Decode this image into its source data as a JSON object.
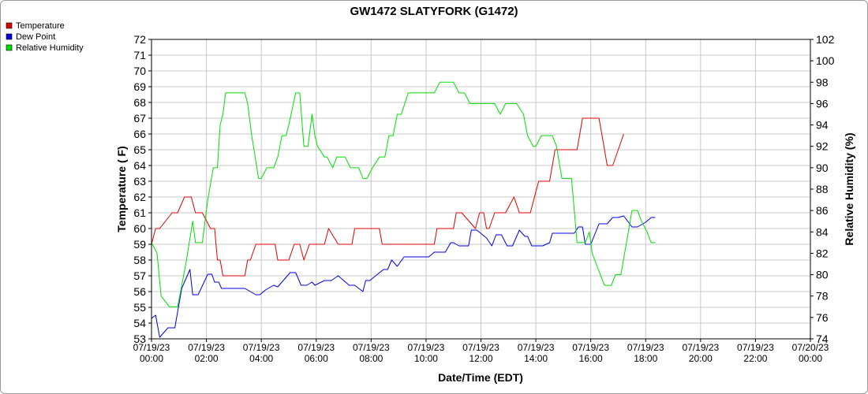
{
  "chart_data": {
    "type": "line",
    "title": "GW1472 SLATYFORK (G1472)",
    "xlabel": "Date/Time (EDT)",
    "ylabel": "Temperature ( F)",
    "ylabel_right": "Relative Humidity (%)",
    "xlim_hours": [
      0,
      24
    ],
    "ylim": [
      53,
      72
    ],
    "ylim_right": [
      74,
      102
    ],
    "grid": true,
    "legend_position": "top-left",
    "x_ticks": [
      {
        "h": 0,
        "date": "07/19/23",
        "time": "00:00"
      },
      {
        "h": 2,
        "date": "07/19/23",
        "time": "02:00"
      },
      {
        "h": 4,
        "date": "07/19/23",
        "time": "04:00"
      },
      {
        "h": 6,
        "date": "07/19/23",
        "time": "06:00"
      },
      {
        "h": 8,
        "date": "07/19/23",
        "time": "08:00"
      },
      {
        "h": 10,
        "date": "07/19/23",
        "time": "10:00"
      },
      {
        "h": 12,
        "date": "07/19/23",
        "time": "12:00"
      },
      {
        "h": 14,
        "date": "07/19/23",
        "time": "14:00"
      },
      {
        "h": 16,
        "date": "07/19/23",
        "time": "16:00"
      },
      {
        "h": 18,
        "date": "07/19/23",
        "time": "18:00"
      },
      {
        "h": 20,
        "date": "07/19/23",
        "time": "20:00"
      },
      {
        "h": 22,
        "date": "07/19/23",
        "time": "22:00"
      },
      {
        "h": 24,
        "date": "07/20/23",
        "time": "00:00"
      }
    ],
    "y_ticks": [
      53,
      54,
      55,
      56,
      57,
      58,
      59,
      60,
      61,
      62,
      63,
      64,
      65,
      66,
      67,
      68,
      69,
      70,
      71,
      72
    ],
    "y_ticks_right": [
      74,
      76,
      78,
      80,
      82,
      84,
      86,
      88,
      90,
      92,
      94,
      96,
      98,
      100,
      102
    ],
    "series": [
      {
        "name": "Temperature",
        "axis": "left",
        "color": "#e00000",
        "points": [
          [
            0.0,
            59
          ],
          [
            0.15,
            60
          ],
          [
            0.3,
            60
          ],
          [
            0.75,
            61
          ],
          [
            0.95,
            61
          ],
          [
            1.2,
            62
          ],
          [
            1.45,
            62
          ],
          [
            1.6,
            61
          ],
          [
            1.85,
            61
          ],
          [
            2.15,
            60
          ],
          [
            2.3,
            60
          ],
          [
            2.4,
            58
          ],
          [
            2.5,
            58
          ],
          [
            2.6,
            57
          ],
          [
            3.4,
            57
          ],
          [
            3.5,
            58
          ],
          [
            3.6,
            58
          ],
          [
            3.8,
            59
          ],
          [
            4.5,
            59
          ],
          [
            4.6,
            58
          ],
          [
            5.0,
            58
          ],
          [
            5.2,
            59
          ],
          [
            5.4,
            59
          ],
          [
            5.55,
            58
          ],
          [
            5.75,
            59
          ],
          [
            6.3,
            59
          ],
          [
            6.45,
            60
          ],
          [
            6.8,
            59
          ],
          [
            7.3,
            59
          ],
          [
            7.4,
            60
          ],
          [
            8.3,
            60
          ],
          [
            8.4,
            59
          ],
          [
            10.3,
            59
          ],
          [
            10.4,
            60
          ],
          [
            11.0,
            60
          ],
          [
            11.1,
            61
          ],
          [
            11.3,
            61
          ],
          [
            11.8,
            60
          ],
          [
            11.95,
            61
          ],
          [
            12.1,
            61
          ],
          [
            12.2,
            60
          ],
          [
            12.3,
            60
          ],
          [
            12.5,
            61
          ],
          [
            12.9,
            61
          ],
          [
            13.2,
            62
          ],
          [
            13.4,
            61
          ],
          [
            13.8,
            61
          ],
          [
            14.1,
            63
          ],
          [
            14.5,
            63
          ],
          [
            14.6,
            64
          ],
          [
            14.7,
            65
          ],
          [
            15.5,
            65
          ],
          [
            15.6,
            66
          ],
          [
            15.7,
            67
          ],
          [
            16.3,
            67
          ],
          [
            16.5,
            65
          ],
          [
            16.6,
            64
          ],
          [
            16.8,
            64
          ],
          [
            17.0,
            65
          ],
          [
            17.2,
            66
          ]
        ]
      },
      {
        "name": "Dew Point",
        "axis": "left",
        "color": "#0000e0",
        "points": [
          [
            0.0,
            54.3
          ],
          [
            0.15,
            54.5
          ],
          [
            0.3,
            53.1
          ],
          [
            0.6,
            53.7
          ],
          [
            0.85,
            53.7
          ],
          [
            1.1,
            56.2
          ],
          [
            1.4,
            57.4
          ],
          [
            1.5,
            55.8
          ],
          [
            1.7,
            55.8
          ],
          [
            2.05,
            57.1
          ],
          [
            2.2,
            57.1
          ],
          [
            2.3,
            56.6
          ],
          [
            2.45,
            56.6
          ],
          [
            2.55,
            56.2
          ],
          [
            3.4,
            56.2
          ],
          [
            3.6,
            56.0
          ],
          [
            3.8,
            55.8
          ],
          [
            3.95,
            55.8
          ],
          [
            4.15,
            56.1
          ],
          [
            4.45,
            56.4
          ],
          [
            4.6,
            56.3
          ],
          [
            4.85,
            56.8
          ],
          [
            5.05,
            57.2
          ],
          [
            5.25,
            57.2
          ],
          [
            5.45,
            56.4
          ],
          [
            5.65,
            56.4
          ],
          [
            5.85,
            56.6
          ],
          [
            5.95,
            56.4
          ],
          [
            6.3,
            56.7
          ],
          [
            6.55,
            56.7
          ],
          [
            6.8,
            57.0
          ],
          [
            7.2,
            56.4
          ],
          [
            7.4,
            56.4
          ],
          [
            7.7,
            56.0
          ],
          [
            7.8,
            56.7
          ],
          [
            7.95,
            56.7
          ],
          [
            8.45,
            57.4
          ],
          [
            8.6,
            57.4
          ],
          [
            8.75,
            58.0
          ],
          [
            8.95,
            57.6
          ],
          [
            9.2,
            58.2
          ],
          [
            10.1,
            58.2
          ],
          [
            10.3,
            58.5
          ],
          [
            10.7,
            58.5
          ],
          [
            10.9,
            59.1
          ],
          [
            11.0,
            59.1
          ],
          [
            11.2,
            58.9
          ],
          [
            11.55,
            58.9
          ],
          [
            11.65,
            59.9
          ],
          [
            11.85,
            59.9
          ],
          [
            12.2,
            59.4
          ],
          [
            12.4,
            58.9
          ],
          [
            12.55,
            59.6
          ],
          [
            12.75,
            59.6
          ],
          [
            12.95,
            58.9
          ],
          [
            13.15,
            58.9
          ],
          [
            13.4,
            59.9
          ],
          [
            13.6,
            59.5
          ],
          [
            13.7,
            59.5
          ],
          [
            13.85,
            58.9
          ],
          [
            14.0,
            58.9
          ],
          [
            14.25,
            58.9
          ],
          [
            14.5,
            59.1
          ],
          [
            14.6,
            59.7
          ],
          [
            15.1,
            59.7
          ],
          [
            15.4,
            59.7
          ],
          [
            15.55,
            60.1
          ],
          [
            15.7,
            60.1
          ],
          [
            15.8,
            59.0
          ],
          [
            16.0,
            59.0
          ],
          [
            16.3,
            60.3
          ],
          [
            16.6,
            60.3
          ],
          [
            16.8,
            60.7
          ],
          [
            17.0,
            60.7
          ],
          [
            17.2,
            60.8
          ],
          [
            17.5,
            60.1
          ],
          [
            17.7,
            60.1
          ],
          [
            18.0,
            60.4
          ],
          [
            18.2,
            60.7
          ],
          [
            18.35,
            60.7
          ]
        ]
      },
      {
        "name": "Relative Humidity",
        "axis": "right",
        "color": "#00e000",
        "points": [
          [
            0.0,
            83
          ],
          [
            0.2,
            82
          ],
          [
            0.35,
            78
          ],
          [
            0.65,
            77
          ],
          [
            0.8,
            77
          ],
          [
            0.95,
            77
          ],
          [
            1.25,
            81
          ],
          [
            1.5,
            85
          ],
          [
            1.6,
            83
          ],
          [
            1.85,
            83
          ],
          [
            2.05,
            87
          ],
          [
            2.25,
            90
          ],
          [
            2.4,
            90
          ],
          [
            2.5,
            94
          ],
          [
            2.6,
            95
          ],
          [
            2.7,
            97
          ],
          [
            3.4,
            97
          ],
          [
            3.5,
            96
          ],
          [
            3.65,
            93
          ],
          [
            3.9,
            89
          ],
          [
            4.0,
            89
          ],
          [
            4.2,
            90
          ],
          [
            4.45,
            90
          ],
          [
            4.6,
            91
          ],
          [
            4.75,
            93
          ],
          [
            4.9,
            93
          ],
          [
            5.0,
            94
          ],
          [
            5.25,
            97
          ],
          [
            5.4,
            97
          ],
          [
            5.55,
            92
          ],
          [
            5.7,
            92
          ],
          [
            5.85,
            95
          ],
          [
            5.95,
            93
          ],
          [
            6.05,
            92
          ],
          [
            6.3,
            91
          ],
          [
            6.4,
            91
          ],
          [
            6.6,
            90
          ],
          [
            6.75,
            91
          ],
          [
            7.05,
            91
          ],
          [
            7.25,
            90
          ],
          [
            7.55,
            90
          ],
          [
            7.7,
            89
          ],
          [
            7.85,
            89
          ],
          [
            8.05,
            90
          ],
          [
            8.3,
            91
          ],
          [
            8.5,
            91
          ],
          [
            8.65,
            93
          ],
          [
            8.8,
            93
          ],
          [
            8.95,
            95
          ],
          [
            9.1,
            95
          ],
          [
            9.35,
            97
          ],
          [
            10.3,
            97
          ],
          [
            10.5,
            98
          ],
          [
            10.7,
            98
          ],
          [
            11.0,
            98
          ],
          [
            11.2,
            97
          ],
          [
            11.4,
            97
          ],
          [
            11.6,
            96
          ],
          [
            12.5,
            96
          ],
          [
            12.7,
            95
          ],
          [
            12.9,
            96
          ],
          [
            13.3,
            96
          ],
          [
            13.55,
            95
          ],
          [
            13.7,
            93
          ],
          [
            13.9,
            92
          ],
          [
            14.0,
            92
          ],
          [
            14.2,
            93
          ],
          [
            14.6,
            93
          ],
          [
            14.75,
            92
          ],
          [
            14.95,
            89
          ],
          [
            15.1,
            89
          ],
          [
            15.3,
            89
          ],
          [
            15.5,
            83
          ],
          [
            15.8,
            83
          ],
          [
            15.95,
            84
          ],
          [
            16.05,
            82
          ],
          [
            16.2,
            81
          ],
          [
            16.5,
            79
          ],
          [
            16.75,
            79
          ],
          [
            16.9,
            80
          ],
          [
            17.1,
            80
          ],
          [
            17.3,
            83
          ],
          [
            17.5,
            86
          ],
          [
            17.7,
            86
          ],
          [
            17.85,
            85
          ],
          [
            18.05,
            84
          ],
          [
            18.2,
            83
          ],
          [
            18.35,
            83
          ]
        ]
      }
    ]
  }
}
